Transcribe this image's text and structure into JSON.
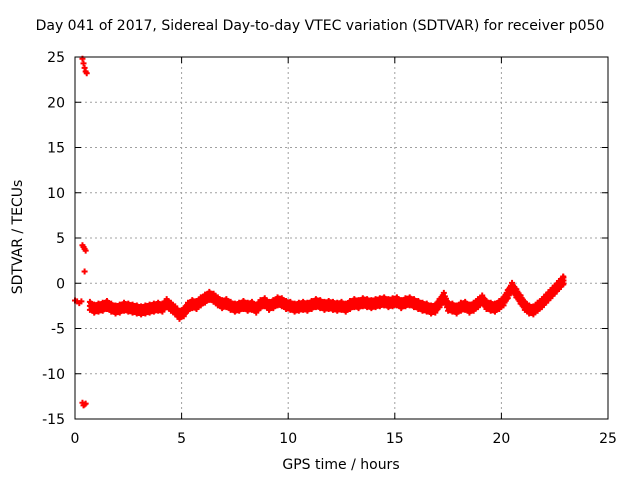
{
  "chart_data": {
    "type": "scatter",
    "title": "Day 041 of 2017, Sidereal Day-to-day VTEC variation (SDTVAR) for receiver p050",
    "xlabel": "GPS time / hours",
    "ylabel": "SDTVAR / TECUs",
    "xlim": [
      0,
      25
    ],
    "ylim": [
      -15,
      25
    ],
    "xticks": [
      0,
      5,
      10,
      15,
      20,
      25
    ],
    "yticks": [
      -15,
      -10,
      -5,
      0,
      5,
      10,
      15,
      20,
      25
    ],
    "xtick_labels": [
      "0",
      "5",
      "10",
      "15",
      "20",
      "25"
    ],
    "ytick_labels": [
      "-15",
      "-10",
      "-5",
      "0",
      "5",
      "10",
      "15",
      "20",
      "25"
    ],
    "grid": true,
    "marker": "plus",
    "color": "#ff0000",
    "series": [
      {
        "name": "SDTVAR",
        "x": [
          0.0,
          0.1,
          0.2,
          0.3,
          0.35,
          0.4,
          0.45,
          0.5,
          0.55,
          0.35,
          0.4,
          0.45,
          0.5,
          0.45,
          0.35,
          0.4,
          0.45,
          0.5,
          0.7,
          0.9,
          1.1,
          1.3,
          1.5,
          1.7,
          1.9,
          2.1,
          2.3,
          2.5,
          2.7,
          2.9,
          3.1,
          3.3,
          3.5,
          3.7,
          3.9,
          4.1,
          4.3,
          4.5,
          4.7,
          4.9,
          5.1,
          5.3,
          5.5,
          5.7,
          5.9,
          6.1,
          6.3,
          6.5,
          6.7,
          6.9,
          7.1,
          7.3,
          7.5,
          7.7,
          7.9,
          8.1,
          8.3,
          8.5,
          8.7,
          8.9,
          9.1,
          9.3,
          9.5,
          9.7,
          9.9,
          10.1,
          10.3,
          10.5,
          10.7,
          10.9,
          11.1,
          11.3,
          11.5,
          11.7,
          11.9,
          12.1,
          12.3,
          12.5,
          12.7,
          12.9,
          13.1,
          13.3,
          13.5,
          13.7,
          13.9,
          14.1,
          14.3,
          14.5,
          14.7,
          14.9,
          15.1,
          15.3,
          15.5,
          15.7,
          15.9,
          16.1,
          16.3,
          16.5,
          16.7,
          16.9,
          17.1,
          17.3,
          17.5,
          17.7,
          17.9,
          18.1,
          18.3,
          18.5,
          18.7,
          18.9,
          19.1,
          19.3,
          19.5,
          19.7,
          19.9,
          20.1,
          20.3,
          20.5,
          20.7,
          20.9,
          21.1,
          21.3,
          21.5,
          21.7,
          21.9,
          22.1,
          22.3,
          22.5,
          22.7,
          22.9
        ],
        "y": [
          -1.9,
          -2.0,
          -2.2,
          -2.0,
          24.8,
          24.3,
          23.8,
          23.4,
          23.2,
          4.2,
          4.0,
          3.8,
          3.6,
          1.3,
          -13.2,
          -13.5,
          -13.4,
          -13.3,
          -2.5,
          -2.8,
          -2.7,
          -2.6,
          -2.4,
          -2.7,
          -2.9,
          -2.8,
          -2.6,
          -2.7,
          -2.8,
          -2.9,
          -3.0,
          -2.9,
          -2.8,
          -2.7,
          -2.6,
          -2.7,
          -2.2,
          -2.6,
          -3.0,
          -3.5,
          -3.2,
          -2.6,
          -2.3,
          -2.4,
          -2.0,
          -1.7,
          -1.4,
          -1.6,
          -2.0,
          -2.3,
          -2.2,
          -2.5,
          -2.7,
          -2.6,
          -2.4,
          -2.6,
          -2.5,
          -2.8,
          -2.3,
          -2.1,
          -2.5,
          -2.3,
          -2.0,
          -2.1,
          -2.4,
          -2.5,
          -2.7,
          -2.6,
          -2.5,
          -2.6,
          -2.4,
          -2.2,
          -2.3,
          -2.5,
          -2.4,
          -2.5,
          -2.6,
          -2.5,
          -2.7,
          -2.4,
          -2.2,
          -2.3,
          -2.1,
          -2.2,
          -2.3,
          -2.2,
          -2.1,
          -2.0,
          -2.2,
          -2.1,
          -2.0,
          -2.3,
          -2.1,
          -2.0,
          -2.2,
          -2.4,
          -2.6,
          -2.7,
          -2.9,
          -2.8,
          -2.2,
          -1.5,
          -2.6,
          -2.7,
          -2.9,
          -2.6,
          -2.5,
          -2.8,
          -2.6,
          -2.2,
          -1.8,
          -2.4,
          -2.6,
          -2.7,
          -2.4,
          -2.0,
          -1.2,
          -0.4,
          -1.1,
          -1.8,
          -2.5,
          -2.9,
          -3.0,
          -2.6,
          -2.2,
          -1.7,
          -1.2,
          -0.7,
          -0.2,
          0.3
        ]
      }
    ]
  }
}
